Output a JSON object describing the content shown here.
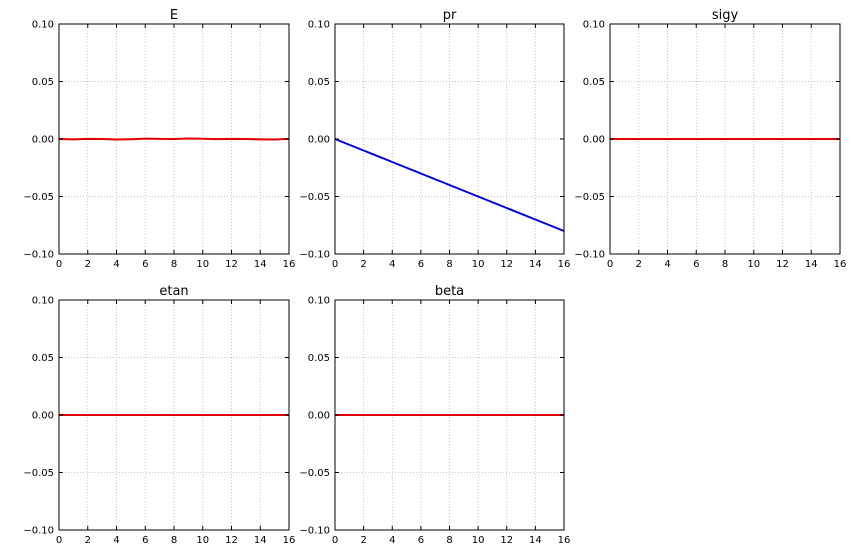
{
  "chart_data": [
    {
      "type": "line",
      "title": "E",
      "xlim": [
        0,
        16
      ],
      "ylim": [
        -0.1,
        0.1
      ],
      "xticks": [
        "0",
        "2",
        "4",
        "6",
        "8",
        "10",
        "12",
        "14",
        "16"
      ],
      "yticks": [
        "0.10",
        "0.05",
        "0.00",
        "−0.05",
        "−0.10"
      ],
      "grid": true,
      "series": [
        {
          "color": "#e00000",
          "x": [
            0,
            1,
            2,
            3,
            4,
            5,
            6,
            7,
            8,
            9,
            10,
            11,
            12,
            13,
            14,
            15,
            16
          ],
          "y": [
            0.0,
            -0.0003,
            0.0001,
            0.0,
            -0.0004,
            -0.0002,
            0.0003,
            0.0001,
            0.0,
            0.0004,
            0.0002,
            -0.0001,
            0.0001,
            0.0,
            -0.0003,
            -0.0004,
            0.0001
          ]
        }
      ]
    },
    {
      "type": "line",
      "title": "pr",
      "xlim": [
        0,
        16
      ],
      "ylim": [
        -0.1,
        0.1
      ],
      "xticks": [
        "0",
        "2",
        "4",
        "6",
        "8",
        "10",
        "12",
        "14",
        "16"
      ],
      "yticks": [
        "0.10",
        "0.05",
        "0.00",
        "−0.05",
        "−0.10"
      ],
      "grid": true,
      "series": [
        {
          "color": "#0000e0",
          "x": [
            0,
            2,
            4,
            6,
            8,
            10,
            12,
            14,
            16
          ],
          "y": [
            0.0,
            -0.01,
            -0.02,
            -0.03,
            -0.04,
            -0.05,
            -0.06,
            -0.07,
            -0.08
          ]
        }
      ]
    },
    {
      "type": "line",
      "title": "sigy",
      "xlim": [
        0,
        16
      ],
      "ylim": [
        -0.1,
        0.1
      ],
      "xticks": [
        "0",
        "2",
        "4",
        "6",
        "8",
        "10",
        "12",
        "14",
        "16"
      ],
      "yticks": [
        "0.10",
        "0.05",
        "0.00",
        "−0.05",
        "−0.10"
      ],
      "grid": true,
      "series": [
        {
          "color": "#e00000",
          "x": [
            0,
            16
          ],
          "y": [
            0.0,
            0.0
          ]
        }
      ]
    },
    {
      "type": "line",
      "title": "etan",
      "xlim": [
        0,
        16
      ],
      "ylim": [
        -0.1,
        0.1
      ],
      "xticks": [
        "0",
        "2",
        "4",
        "6",
        "8",
        "10",
        "12",
        "14",
        "16"
      ],
      "yticks": [
        "0.10",
        "0.05",
        "0.00",
        "−0.05",
        "−0.10"
      ],
      "grid": true,
      "series": [
        {
          "color": "#e00000",
          "x": [
            0,
            16
          ],
          "y": [
            0.0,
            0.0
          ]
        }
      ]
    },
    {
      "type": "line",
      "title": "beta",
      "xlim": [
        0,
        16
      ],
      "ylim": [
        -0.1,
        0.1
      ],
      "xticks": [
        "0",
        "2",
        "4",
        "6",
        "8",
        "10",
        "12",
        "14",
        "16"
      ],
      "yticks": [
        "0.10",
        "0.05",
        "0.00",
        "−0.05",
        "−0.10"
      ],
      "grid": true,
      "series": [
        {
          "color": "#e00000",
          "x": [
            0,
            16
          ],
          "y": [
            0.0,
            0.0
          ]
        }
      ]
    }
  ]
}
